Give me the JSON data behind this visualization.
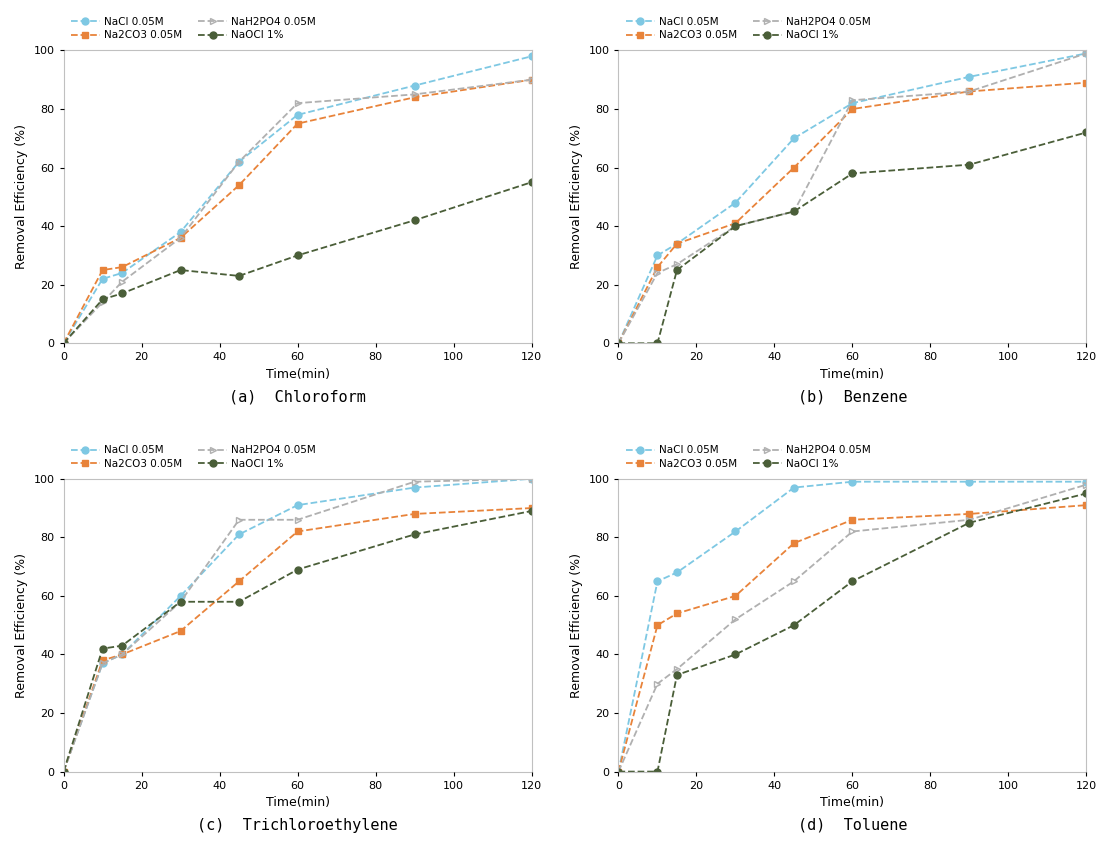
{
  "time": [
    0,
    10,
    15,
    30,
    45,
    60,
    90,
    120
  ],
  "subplots": [
    {
      "title": "(a)  Chloroform",
      "NaCl": [
        0,
        22,
        24,
        38,
        62,
        78,
        88,
        98
      ],
      "Na2CO3": [
        0,
        25,
        26,
        36,
        54,
        75,
        84,
        90
      ],
      "NaH2PO4": [
        0,
        14,
        21,
        36,
        62,
        82,
        85,
        90
      ],
      "NaOCl": [
        0,
        15,
        17,
        25,
        23,
        30,
        42,
        55
      ]
    },
    {
      "title": "(b)  Benzene",
      "NaCl": [
        0,
        30,
        34,
        48,
        70,
        82,
        91,
        99
      ],
      "Na2CO3": [
        0,
        26,
        34,
        41,
        60,
        80,
        86,
        89
      ],
      "NaH2PO4": [
        0,
        24,
        27,
        40,
        45,
        83,
        86,
        99
      ],
      "NaOCl": [
        0,
        0,
        25,
        40,
        45,
        58,
        61,
        72
      ]
    },
    {
      "title": "(c)  Trichloroethylene",
      "NaCl": [
        0,
        37,
        40,
        60,
        81,
        91,
        97,
        100
      ],
      "Na2CO3": [
        0,
        38,
        40,
        48,
        65,
        82,
        88,
        90
      ],
      "NaH2PO4": [
        0,
        37,
        40,
        58,
        86,
        86,
        99,
        100
      ],
      "NaOCl": [
        0,
        42,
        43,
        58,
        58,
        69,
        81,
        89
      ]
    },
    {
      "title": "(d)  Toluene",
      "NaCl": [
        0,
        65,
        68,
        82,
        97,
        99,
        99,
        99
      ],
      "Na2CO3": [
        0,
        50,
        54,
        60,
        78,
        86,
        88,
        91
      ],
      "NaH2PO4": [
        0,
        30,
        35,
        52,
        65,
        82,
        86,
        98
      ],
      "NaOCl": [
        0,
        0,
        33,
        40,
        50,
        65,
        85,
        95
      ]
    }
  ],
  "legend_labels": [
    "NaCl 0.05M",
    "Na2CO3 0.05M",
    "NaH2PO4 0.05M",
    "NaOCl 1%"
  ],
  "colors": {
    "NaCl": "#7ec8e3",
    "Na2CO3": "#e8833a",
    "NaH2PO4": "#b0b0b0",
    "NaOCl": "#4a5e38"
  },
  "ylabel": "Removal Efficiency (%)",
  "xlabel": "Time(min)",
  "ylim": [
    0,
    100
  ],
  "xlim": [
    0,
    120
  ],
  "xticks": [
    0,
    20,
    40,
    60,
    80,
    100,
    120
  ],
  "yticks": [
    0,
    20,
    40,
    60,
    80,
    100
  ],
  "panel_bg": "#ffffff"
}
